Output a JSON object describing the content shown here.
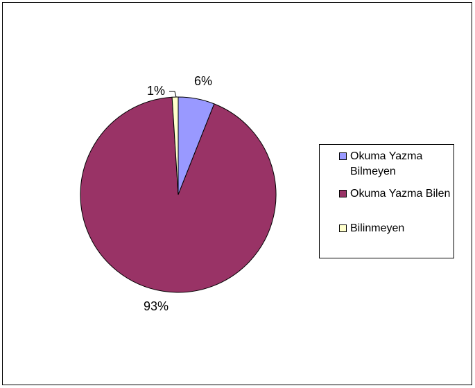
{
  "chart_data": {
    "type": "pie",
    "categories": [
      "Okuma Yazma Bilmeyen",
      "Okuma Yazma Bilen",
      "Bilinmeyen"
    ],
    "values": [
      6,
      93,
      1
    ],
    "data_labels": [
      "6%",
      "93%",
      "1%"
    ],
    "colors": [
      "#9999ff",
      "#993366",
      "#ffffcc"
    ],
    "legend_position": "right",
    "title": ""
  },
  "legend": {
    "items": [
      {
        "label": "Okuma Yazma Bilmeyen",
        "color": "#9999ff"
      },
      {
        "label": "Okuma Yazma Bilen",
        "color": "#993366"
      },
      {
        "label": "Bilinmeyen",
        "color": "#ffffcc"
      }
    ]
  }
}
